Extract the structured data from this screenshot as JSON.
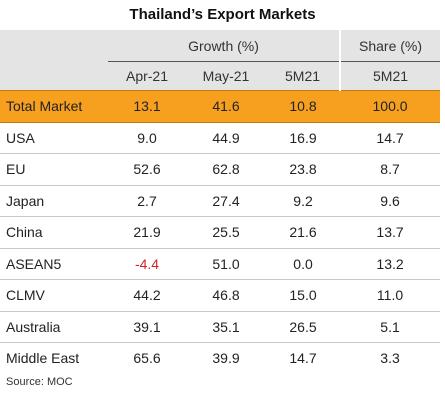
{
  "title": "Thailand’s Export Markets",
  "headers": {
    "growth": "Growth (%)",
    "share": "Share (%)",
    "cols": [
      "Apr-21",
      "May-21",
      "5M21",
      "5M21"
    ]
  },
  "rows": [
    {
      "label": "Total Market",
      "values": [
        "13.1",
        "41.6",
        "10.8",
        "100.0"
      ]
    },
    {
      "label": "USA",
      "values": [
        "9.0",
        "44.9",
        "16.9",
        "14.7"
      ]
    },
    {
      "label": "EU",
      "values": [
        "52.6",
        "62.8",
        "23.8",
        "8.7"
      ]
    },
    {
      "label": "Japan",
      "values": [
        "2.7",
        "27.4",
        "9.2",
        "9.6"
      ]
    },
    {
      "label": "China",
      "values": [
        "21.9",
        "25.5",
        "21.6",
        "13.7"
      ]
    },
    {
      "label": "ASEAN5",
      "values": [
        "-4.4",
        "51.0",
        "0.0",
        "13.2"
      ]
    },
    {
      "label": "CLMV",
      "values": [
        "44.2",
        "46.8",
        "15.0",
        "11.0"
      ]
    },
    {
      "label": "Australia",
      "values": [
        "39.1",
        "35.1",
        "26.5",
        "5.1"
      ]
    },
    {
      "label": "Middle East",
      "values": [
        "65.6",
        "39.9",
        "14.7",
        "3.3"
      ]
    }
  ],
  "colors": {
    "highlight": "#f7a020",
    "negative": "#d32222",
    "header_bg": "#e4e4e4"
  },
  "source": "Source: MOC"
}
